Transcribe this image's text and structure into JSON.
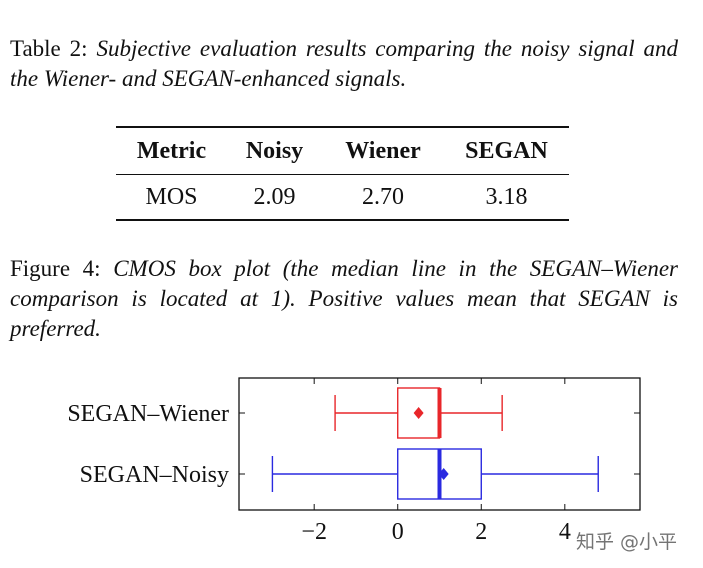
{
  "table_caption": {
    "label": "Table 2:",
    "text": "Subjective evaluation results comparing the noisy signal and the Wiener- and SEGAN-enhanced signals."
  },
  "table": {
    "headers": [
      "Metric",
      "Noisy",
      "Wiener",
      "SEGAN"
    ],
    "rows": [
      [
        "MOS",
        "2.09",
        "2.70",
        "3.18"
      ]
    ]
  },
  "figure_caption": {
    "label": "Figure 4:",
    "text": "CMOS box plot (the median line in the SEGAN–Wiener comparison is located at 1). Positive values mean that SEGAN is preferred."
  },
  "chart_data": {
    "type": "boxplot",
    "orientation": "horizontal",
    "title": "CMOS box plot",
    "xlim": [
      -3.8,
      5.8
    ],
    "xticks": [
      -2,
      0,
      2,
      4
    ],
    "xtick_labels": [
      "−2",
      "0",
      "2",
      "4"
    ],
    "series": [
      {
        "name": "SEGAN–Wiener",
        "color": "#e8262a",
        "whisker_low": -1.5,
        "q1": 0,
        "median": 1,
        "q3": 1,
        "whisker_high": 2.5,
        "mean": 0.5
      },
      {
        "name": "SEGAN–Noisy",
        "color": "#2a2ae0",
        "whisker_low": -3,
        "q1": 0,
        "median": 1,
        "q3": 2,
        "whisker_high": 4.8,
        "mean": 1.1
      }
    ]
  },
  "watermark": "知乎 @小平"
}
